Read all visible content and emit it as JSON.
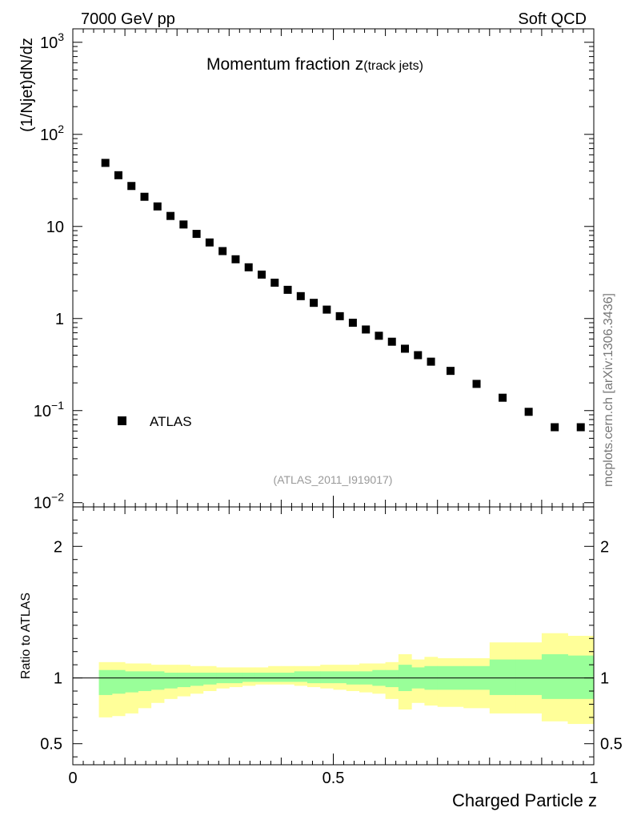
{
  "header": {
    "left": "7000 GeV pp",
    "right": "Soft QCD"
  },
  "side_text": "mcplots.cern.ch [arXiv:1306.3436]",
  "chart_data": [
    {
      "type": "scatter",
      "panel": "main",
      "title": "Momentum fraction",
      "title_var": "z",
      "title_sub": "(track jets)",
      "ylabel": "(1/Njet)dN/dz",
      "xlabel": "Charged Particle z",
      "yscale": "log",
      "xlim": [
        0,
        1.0
      ],
      "ylim": [
        0.009,
        1400
      ],
      "ytick_labels": [
        {
          "value": 1000,
          "base": "10",
          "exp": "3"
        },
        {
          "value": 100,
          "base": "10",
          "exp": "2"
        },
        {
          "value": 10,
          "base": "10",
          "exp": ""
        },
        {
          "value": 1,
          "base": "1",
          "exp": ""
        },
        {
          "value": 0.1,
          "base": "10",
          "exp": "−1"
        },
        {
          "value": 0.01,
          "base": "10",
          "exp": "−2"
        }
      ],
      "legend": {
        "label": "ATLAS",
        "placement": "bottom-left"
      },
      "watermark": "(ATLAS_2011_I919017)",
      "series": [
        {
          "name": "ATLAS",
          "x": [
            0.0625,
            0.0875,
            0.1125,
            0.1375,
            0.1625,
            0.1875,
            0.2125,
            0.2375,
            0.2625,
            0.2875,
            0.3125,
            0.3375,
            0.3625,
            0.3875,
            0.4125,
            0.4375,
            0.4625,
            0.4875,
            0.5125,
            0.5375,
            0.5625,
            0.5875,
            0.6125,
            0.6375,
            0.6625,
            0.6875,
            0.725,
            0.775,
            0.825,
            0.875,
            0.925,
            0.975
          ],
          "y": [
            49,
            36,
            27.5,
            21,
            16.5,
            13,
            10.5,
            8.3,
            6.7,
            5.4,
            4.4,
            3.6,
            3.0,
            2.45,
            2.05,
            1.75,
            1.48,
            1.25,
            1.06,
            0.9,
            0.76,
            0.65,
            0.56,
            0.47,
            0.4,
            0.34,
            0.27,
            0.195,
            0.138,
            0.097,
            0.066,
            0.066
          ]
        }
      ]
    },
    {
      "type": "area",
      "panel": "ratio",
      "ylabel": "Ratio to ATLAS",
      "ylim": [
        0.34,
        2.3
      ],
      "ytick_labels": [
        "0.5",
        "1",
        "2"
      ],
      "xtick_labels": [
        "0",
        "0.5",
        "1"
      ],
      "bin_edges": [
        0.05,
        0.075,
        0.1,
        0.125,
        0.15,
        0.175,
        0.2,
        0.225,
        0.25,
        0.275,
        0.3,
        0.325,
        0.35,
        0.375,
        0.4,
        0.425,
        0.45,
        0.475,
        0.5,
        0.525,
        0.55,
        0.575,
        0.6,
        0.625,
        0.65,
        0.675,
        0.7,
        0.75,
        0.8,
        0.85,
        0.9,
        0.95,
        1.0
      ],
      "bands": [
        {
          "name": "total uncertainty",
          "color": "#ffff99",
          "upper": [
            1.12,
            1.12,
            1.11,
            1.11,
            1.1,
            1.1,
            1.1,
            1.09,
            1.09,
            1.08,
            1.08,
            1.08,
            1.08,
            1.09,
            1.09,
            1.09,
            1.09,
            1.1,
            1.1,
            1.1,
            1.11,
            1.11,
            1.12,
            1.18,
            1.14,
            1.16,
            1.15,
            1.15,
            1.27,
            1.27,
            1.34,
            1.32
          ],
          "lower": [
            0.7,
            0.71,
            0.73,
            0.77,
            0.81,
            0.84,
            0.86,
            0.88,
            0.9,
            0.92,
            0.93,
            0.94,
            0.95,
            0.95,
            0.95,
            0.94,
            0.93,
            0.92,
            0.91,
            0.9,
            0.89,
            0.88,
            0.84,
            0.76,
            0.81,
            0.79,
            0.78,
            0.77,
            0.73,
            0.73,
            0.67,
            0.65
          ]
        },
        {
          "name": "statistical uncertainty",
          "color": "#99ff99",
          "upper": [
            1.06,
            1.06,
            1.05,
            1.05,
            1.05,
            1.04,
            1.04,
            1.04,
            1.04,
            1.04,
            1.04,
            1.04,
            1.04,
            1.04,
            1.04,
            1.05,
            1.05,
            1.05,
            1.05,
            1.05,
            1.05,
            1.06,
            1.06,
            1.1,
            1.08,
            1.09,
            1.09,
            1.09,
            1.14,
            1.14,
            1.18,
            1.17
          ],
          "lower": [
            0.87,
            0.88,
            0.89,
            0.9,
            0.91,
            0.92,
            0.93,
            0.94,
            0.95,
            0.96,
            0.96,
            0.97,
            0.97,
            0.97,
            0.97,
            0.97,
            0.96,
            0.96,
            0.96,
            0.95,
            0.95,
            0.94,
            0.93,
            0.9,
            0.92,
            0.91,
            0.91,
            0.91,
            0.87,
            0.87,
            0.84,
            0.84
          ]
        }
      ],
      "reference_line": 1
    }
  ]
}
